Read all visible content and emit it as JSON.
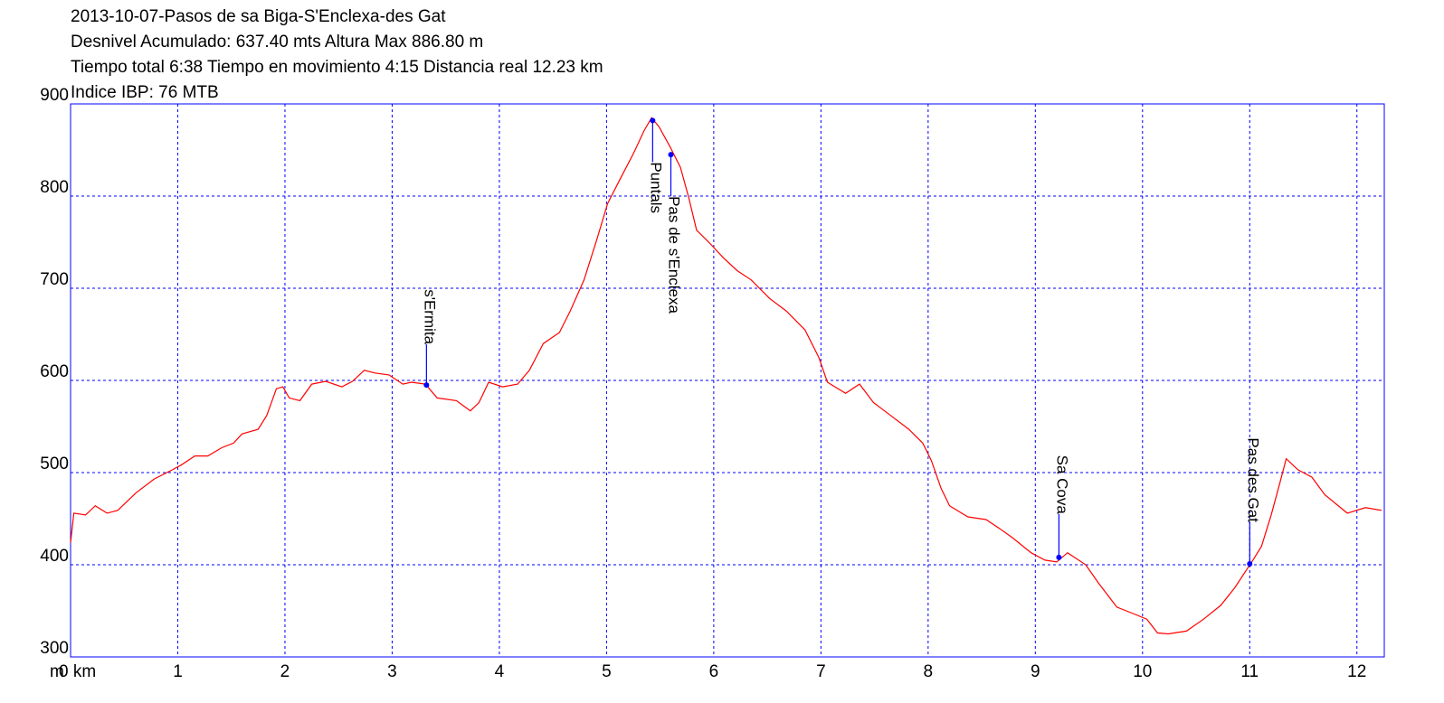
{
  "chart_data": {
    "type": "line",
    "title_lines": [
      "2013-10-07-Pasos de sa Biga-S'Enclexa-des Gat",
      "Desnivel Acumulado: 637.40 mts  Altura Max 886.80 m",
      "Tiempo total 6:38 Tiempo en movimiento 4:15 Distancia real 12.23 km",
      "Indice IBP: 76 MTB"
    ],
    "y_unit": "m",
    "color": "#ff0000",
    "axis_color": "#0000ff",
    "point_color": "#0000ff",
    "grid": true,
    "xlim": [
      0,
      12.23
    ],
    "ylim": [
      300,
      900
    ],
    "xticks": [
      {
        "value": 0,
        "label": "0 km"
      },
      1,
      2,
      3,
      4,
      5,
      6,
      7,
      8,
      9,
      10,
      11,
      12
    ],
    "yticks": [
      300,
      400,
      500,
      600,
      700,
      800,
      900
    ],
    "x": [
      0,
      0.03,
      0.14,
      0.23,
      0.34,
      0.44,
      0.61,
      0.78,
      0.95,
      1.03,
      1.16,
      1.28,
      1.41,
      1.52,
      1.6,
      1.75,
      1.83,
      1.92,
      1.98,
      2.04,
      2.14,
      2.25,
      2.38,
      2.53,
      2.63,
      2.74,
      2.84,
      2.97,
      3.1,
      3.18,
      3.31,
      3.42,
      3.6,
      3.73,
      3.81,
      3.9,
      4.03,
      4.17,
      4.28,
      4.41,
      4.56,
      4.66,
      4.79,
      4.91,
      5.01,
      5.12,
      5.25,
      5.35,
      5.42,
      5.49,
      5.59,
      5.69,
      5.77,
      5.84,
      5.97,
      6.09,
      6.22,
      6.35,
      6.52,
      6.68,
      6.85,
      6.98,
      7.06,
      7.23,
      7.36,
      7.49,
      7.65,
      7.82,
      7.95,
      8.03,
      8.12,
      8.2,
      8.37,
      8.54,
      8.67,
      8.79,
      8.96,
      9.09,
      9.2,
      9.3,
      9.47,
      9.59,
      9.76,
      9.89,
      10.04,
      10.14,
      10.24,
      10.41,
      10.57,
      10.73,
      10.86,
      11.03,
      11.11,
      11.2,
      11.28,
      11.34,
      11.45,
      11.58,
      11.7,
      11.91,
      12.08,
      12.23
    ],
    "values": [
      424,
      456,
      454,
      464,
      456,
      459,
      478,
      493,
      503,
      508,
      518,
      518,
      527,
      532,
      542,
      547,
      562,
      591,
      593,
      581,
      578,
      596,
      599,
      593,
      599,
      611,
      608,
      606,
      596,
      598,
      596,
      581,
      578,
      567,
      576,
      598,
      593,
      596,
      611,
      640,
      652,
      675,
      709,
      753,
      792,
      817,
      846,
      871,
      885,
      875,
      854,
      831,
      797,
      763,
      748,
      733,
      719,
      709,
      689,
      675,
      655,
      625,
      598,
      586,
      596,
      576,
      562,
      547,
      532,
      513,
      483,
      464,
      452,
      449,
      439,
      429,
      413,
      405,
      403,
      413,
      400,
      380,
      354,
      348,
      341,
      326,
      325,
      328,
      341,
      356,
      375,
      405,
      420,
      454,
      488,
      515,
      503,
      495,
      476,
      456,
      462,
      459
    ],
    "annotations": [
      {
        "label": "s'Ermita",
        "x": 3.32,
        "y": 595
      },
      {
        "label": "Puntals",
        "x": 5.43,
        "y": 882
      },
      {
        "label": "Pas de s'Enclexa",
        "x": 5.6,
        "y": 845
      },
      {
        "label": "Sa Cova",
        "x": 9.22,
        "y": 408
      },
      {
        "label": "Pas des Gat",
        "x": 11.0,
        "y": 401
      }
    ]
  }
}
